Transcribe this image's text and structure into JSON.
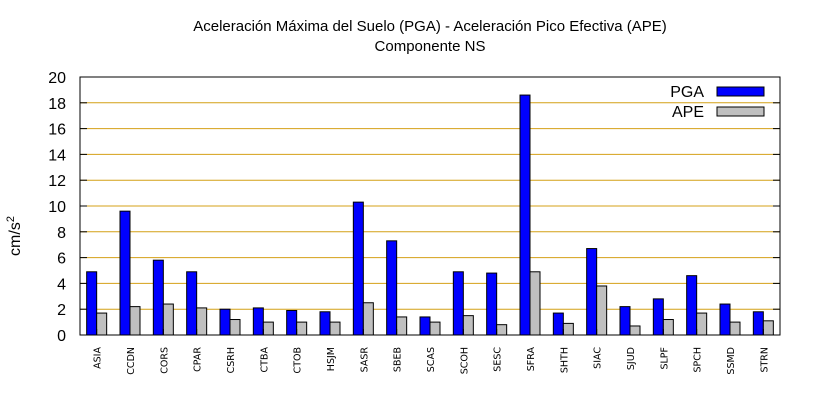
{
  "chart_data": {
    "type": "bar",
    "title": "Aceleración Máxima del Suelo (PGA) -  Aceleración Pico Efectiva (APE)",
    "subtitle": "Componente NS",
    "ylabel_base": "cm/s",
    "ylabel_sup": "2",
    "xlabel": "",
    "ylim": [
      0,
      20
    ],
    "yticks": [
      0,
      2,
      4,
      6,
      8,
      10,
      12,
      14,
      16,
      18,
      20
    ],
    "grid": "horizontal",
    "grid_color": "#d4a017",
    "legend_position": "top-right",
    "categories": [
      "ASIA",
      "CCDN",
      "CORS",
      "CPAR",
      "CSRH",
      "CTBA",
      "CTOB",
      "HSJM",
      "SASR",
      "SBEB",
      "SCAS",
      "SCOH",
      "SESC",
      "SFRA",
      "SHTH",
      "SIAC",
      "SJUD",
      "SLPF",
      "SPCH",
      "SSMD",
      "STRN"
    ],
    "series": [
      {
        "name": "PGA",
        "color": "#0000ff",
        "values": [
          4.9,
          9.6,
          5.8,
          4.9,
          2.0,
          2.1,
          1.9,
          1.8,
          10.3,
          7.3,
          1.4,
          4.9,
          4.8,
          18.6,
          1.7,
          6.7,
          2.2,
          2.8,
          4.6,
          2.4,
          1.8
        ]
      },
      {
        "name": "APE",
        "color": "#c0c0c0",
        "values": [
          1.7,
          2.2,
          2.4,
          2.1,
          1.2,
          1.0,
          1.0,
          1.0,
          2.5,
          1.4,
          1.0,
          1.5,
          0.8,
          4.9,
          0.9,
          3.8,
          0.7,
          1.2,
          1.7,
          1.0,
          1.1
        ]
      }
    ]
  }
}
